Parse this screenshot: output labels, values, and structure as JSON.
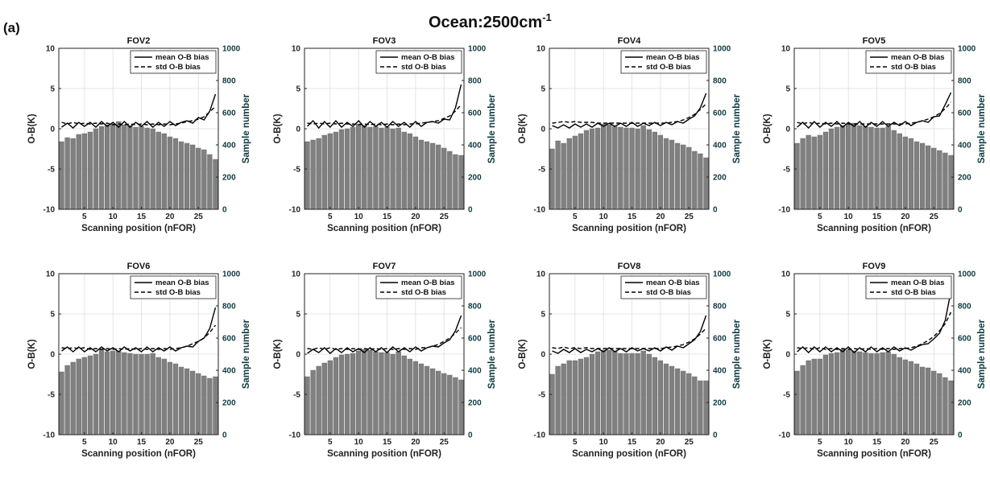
{
  "figure": {
    "panel_label": "(a)",
    "title_main": "Ocean:2500cm",
    "title_sup": "-1"
  },
  "chart_data": {
    "type": "bar+line",
    "x_categories_count": 28,
    "xlabel": "Scanning position (nFOR)",
    "ylabel_left": "O-B(K)",
    "ylabel_right": "Sample number",
    "ylim_left": [
      -10,
      10
    ],
    "ylim_right": [
      0,
      1000
    ],
    "xticks": [
      5,
      10,
      15,
      20,
      25
    ],
    "yticks_left": [
      -10,
      -5,
      0,
      5,
      10
    ],
    "yticks_right": [
      0,
      200,
      400,
      600,
      800,
      1000
    ],
    "grid": true,
    "legend_position": "top-right",
    "legend": [
      "mean O-B bias",
      "std O-B bias"
    ],
    "bar_color": "#808080",
    "line_color": "#000000",
    "panels": [
      {
        "title": "FOV2",
        "bars": [
          420,
          445,
          440,
          465,
          470,
          480,
          500,
          515,
          525,
          530,
          545,
          525,
          520,
          510,
          515,
          505,
          500,
          480,
          470,
          450,
          440,
          420,
          410,
          400,
          380,
          370,
          340,
          310
        ],
        "mean": [
          0.2,
          0.7,
          0.1,
          0.8,
          0.3,
          0.8,
          0.2,
          0.9,
          0.3,
          0.8,
          0.2,
          0.9,
          0.2,
          0.8,
          0.3,
          0.9,
          0.2,
          0.8,
          0.3,
          0.9,
          0.4,
          0.8,
          1.0,
          0.7,
          1.4,
          1.1,
          2.2,
          4.3
        ],
        "std": [
          0.8,
          0.6,
          0.8,
          0.6,
          0.7,
          0.6,
          0.7,
          0.6,
          0.7,
          0.5,
          0.6,
          0.5,
          0.6,
          0.5,
          0.6,
          0.5,
          0.6,
          0.5,
          0.6,
          0.5,
          0.6,
          0.7,
          0.9,
          1.0,
          1.2,
          1.5,
          2.1,
          2.8
        ]
      },
      {
        "title": "FOV3",
        "bars": [
          420,
          430,
          440,
          460,
          470,
          480,
          495,
          500,
          510,
          530,
          520,
          510,
          515,
          505,
          510,
          500,
          505,
          480,
          470,
          450,
          430,
          420,
          410,
          400,
          380,
          360,
          340,
          335
        ],
        "mean": [
          0.3,
          1.0,
          0.1,
          0.9,
          0.2,
          1.0,
          0.2,
          0.8,
          0.3,
          1.0,
          0.2,
          0.9,
          0.3,
          0.8,
          0.2,
          0.9,
          0.3,
          0.8,
          0.2,
          0.9,
          0.3,
          0.8,
          0.9,
          0.7,
          1.2,
          1.1,
          2.6,
          5.5
        ],
        "std": [
          0.7,
          0.6,
          0.7,
          0.6,
          0.7,
          0.6,
          0.7,
          0.6,
          0.6,
          0.5,
          0.6,
          0.5,
          0.6,
          0.5,
          0.6,
          0.5,
          0.6,
          0.5,
          0.6,
          0.6,
          0.7,
          0.8,
          0.9,
          1.0,
          1.3,
          1.6,
          2.2,
          3.0
        ]
      },
      {
        "title": "FOV4",
        "bars": [
          375,
          425,
          410,
          440,
          455,
          470,
          490,
          500,
          505,
          530,
          525,
          515,
          510,
          505,
          505,
          500,
          520,
          495,
          480,
          460,
          440,
          430,
          410,
          400,
          385,
          360,
          345,
          320
        ],
        "mean": [
          0.4,
          0.1,
          0.5,
          0.1,
          0.6,
          0.2,
          0.6,
          0.2,
          0.7,
          0.3,
          0.7,
          0.3,
          0.7,
          0.3,
          0.8,
          0.3,
          0.7,
          0.4,
          0.8,
          0.4,
          0.8,
          0.5,
          0.9,
          0.7,
          1.2,
          1.6,
          2.6,
          4.4
        ],
        "std": [
          0.7,
          0.8,
          0.9,
          0.8,
          0.9,
          0.8,
          0.8,
          0.8,
          0.7,
          0.7,
          0.7,
          0.7,
          0.7,
          0.7,
          0.7,
          0.7,
          0.7,
          0.7,
          0.7,
          0.7,
          0.7,
          0.8,
          0.9,
          1.1,
          1.4,
          1.8,
          2.4,
          3.1
        ]
      },
      {
        "title": "FOV5",
        "bars": [
          410,
          440,
          460,
          450,
          460,
          480,
          500,
          510,
          520,
          530,
          535,
          520,
          515,
          510,
          505,
          505,
          515,
          490,
          470,
          450,
          440,
          420,
          410,
          395,
          380,
          365,
          350,
          335
        ],
        "mean": [
          0.2,
          0.8,
          0.1,
          0.9,
          0.2,
          0.8,
          0.3,
          0.9,
          0.2,
          0.8,
          0.3,
          0.9,
          0.2,
          0.8,
          0.3,
          0.9,
          0.3,
          0.8,
          0.4,
          0.9,
          0.4,
          0.8,
          1.0,
          0.8,
          1.5,
          1.6,
          3.0,
          4.5
        ],
        "std": [
          0.8,
          0.6,
          0.8,
          0.6,
          0.7,
          0.6,
          0.7,
          0.6,
          0.7,
          0.6,
          0.6,
          0.6,
          0.6,
          0.6,
          0.6,
          0.6,
          0.6,
          0.6,
          0.6,
          0.6,
          0.7,
          0.8,
          1.0,
          1.2,
          1.5,
          1.9,
          2.5,
          3.3
        ]
      },
      {
        "title": "FOV6",
        "bars": [
          390,
          430,
          450,
          470,
          480,
          490,
          500,
          530,
          515,
          520,
          520,
          510,
          505,
          500,
          500,
          500,
          505,
          480,
          470,
          450,
          440,
          420,
          410,
          395,
          380,
          365,
          350,
          360
        ],
        "mean": [
          0.4,
          0.9,
          0.3,
          0.9,
          0.3,
          0.8,
          0.3,
          0.9,
          0.4,
          0.8,
          0.3,
          0.9,
          0.4,
          0.8,
          0.3,
          0.9,
          0.3,
          0.8,
          0.4,
          0.9,
          0.4,
          0.8,
          1.0,
          0.9,
          1.6,
          2.0,
          3.2,
          5.8
        ],
        "std": [
          0.8,
          0.7,
          0.8,
          0.7,
          0.8,
          0.6,
          0.7,
          0.6,
          0.7,
          0.6,
          0.7,
          0.6,
          0.7,
          0.6,
          0.7,
          0.6,
          0.7,
          0.6,
          0.7,
          0.6,
          0.7,
          0.8,
          1.0,
          1.3,
          1.6,
          2.0,
          2.7,
          3.6
        ]
      },
      {
        "title": "FOV7",
        "bars": [
          360,
          400,
          425,
          445,
          460,
          480,
          495,
          500,
          505,
          520,
          530,
          525,
          515,
          510,
          510,
          500,
          515,
          490,
          470,
          455,
          440,
          425,
          410,
          395,
          380,
          370,
          355,
          340
        ],
        "mean": [
          0.1,
          0.6,
          0.2,
          0.8,
          0.1,
          0.7,
          0.2,
          0.8,
          0.3,
          0.7,
          0.2,
          0.8,
          0.3,
          0.8,
          0.2,
          0.9,
          0.3,
          0.8,
          0.3,
          0.9,
          0.4,
          0.8,
          1.0,
          0.9,
          1.4,
          1.8,
          2.9,
          4.8
        ],
        "std": [
          0.7,
          0.6,
          0.8,
          0.6,
          0.8,
          0.6,
          0.7,
          0.6,
          0.7,
          0.6,
          0.7,
          0.6,
          0.7,
          0.6,
          0.7,
          0.6,
          0.7,
          0.6,
          0.7,
          0.6,
          0.8,
          0.8,
          1.0,
          1.2,
          1.6,
          2.0,
          2.6,
          3.3
        ]
      },
      {
        "title": "FOV8",
        "bars": [
          375,
          425,
          440,
          460,
          460,
          470,
          480,
          500,
          515,
          525,
          525,
          520,
          505,
          505,
          505,
          505,
          520,
          500,
          480,
          460,
          440,
          425,
          410,
          395,
          380,
          360,
          335,
          335
        ],
        "mean": [
          0.4,
          0.1,
          0.6,
          0.2,
          0.7,
          0.2,
          0.6,
          0.3,
          0.7,
          0.3,
          0.8,
          0.3,
          0.7,
          0.3,
          0.8,
          0.4,
          0.7,
          0.4,
          0.8,
          0.4,
          0.9,
          0.5,
          1.0,
          0.8,
          1.3,
          1.8,
          2.8,
          4.8
        ],
        "std": [
          0.8,
          0.7,
          0.9,
          0.7,
          0.8,
          0.7,
          0.8,
          0.7,
          0.7,
          0.7,
          0.7,
          0.7,
          0.7,
          0.7,
          0.7,
          0.7,
          0.7,
          0.7,
          0.7,
          0.7,
          0.8,
          0.9,
          1.0,
          1.2,
          1.5,
          1.9,
          2.5,
          3.2
        ]
      },
      {
        "title": "FOV9",
        "bars": [
          395,
          430,
          460,
          470,
          470,
          495,
          505,
          510,
          530,
          525,
          520,
          515,
          510,
          505,
          505,
          510,
          515,
          500,
          480,
          465,
          455,
          440,
          420,
          415,
          395,
          380,
          355,
          335
        ],
        "mean": [
          0.3,
          0.9,
          0.2,
          0.9,
          0.3,
          0.9,
          0.3,
          0.8,
          0.3,
          0.9,
          0.2,
          0.8,
          0.3,
          0.9,
          0.3,
          0.8,
          0.3,
          0.9,
          0.4,
          0.8,
          0.5,
          0.9,
          1.2,
          1.3,
          1.9,
          2.6,
          4.2,
          7.8
        ],
        "std": [
          0.8,
          0.7,
          0.8,
          0.6,
          0.8,
          0.6,
          0.7,
          0.6,
          0.7,
          0.6,
          0.7,
          0.6,
          0.7,
          0.6,
          0.7,
          0.6,
          0.7,
          0.6,
          0.7,
          0.7,
          0.8,
          1.0,
          1.3,
          1.7,
          2.2,
          2.9,
          3.8,
          5.2
        ]
      }
    ]
  }
}
